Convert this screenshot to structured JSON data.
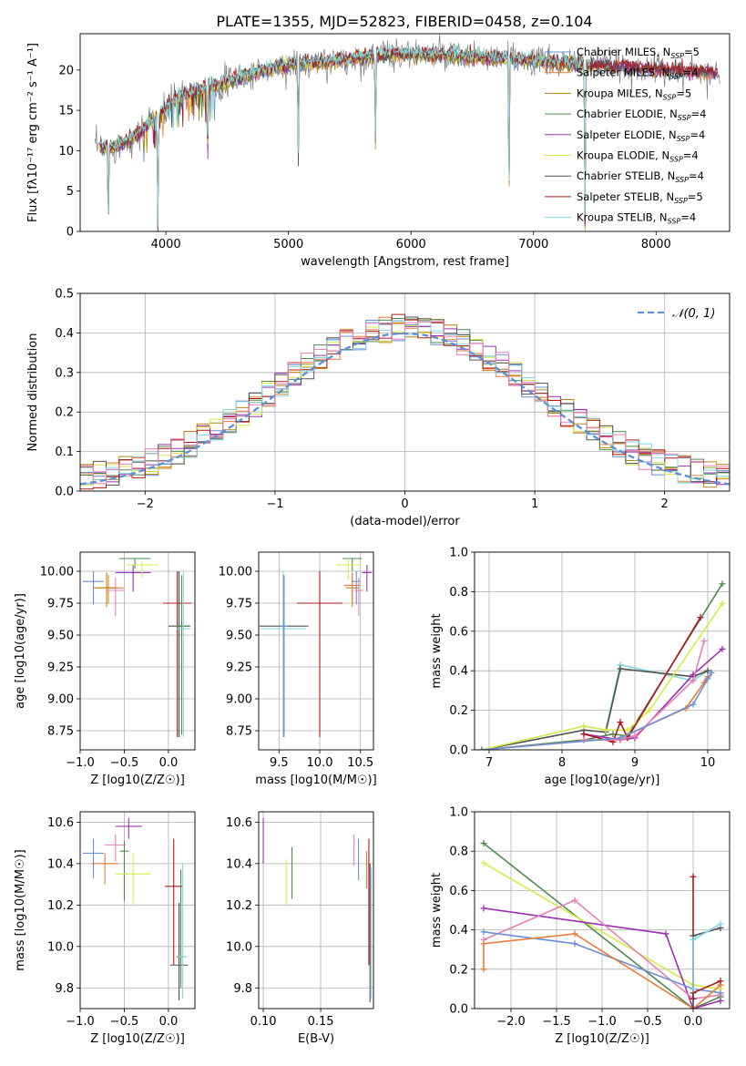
{
  "figure_title": "PLATE=1355, MJD=52823, FIBERID=0458, z=0.104",
  "colors": {
    "Chabrier MILES": "#6a8fd8",
    "Salpeter MILES": "#e97d3b",
    "Kroupa MILES": "#b8860b",
    "Chabrier ELODIE": "#4e8a4e",
    "Salpeter ELODIE": "#9b30b0",
    "Kroupa ELODIE": "#d4ec4a",
    "Chabrier STELIB": "#505050",
    "Salpeter STELIB": "#b01818",
    "Kroupa STELIB": "#80d8e0",
    "data": "#808080",
    "pink": "#e87fb8",
    "normal": "#5b8fd8"
  },
  "chart_data": [
    {
      "id": "spectrum",
      "type": "line",
      "xlabel": "wavelength [Angstrom, rest frame]",
      "ylabel": "Flux [fλ10⁻¹⁷ erg cm⁻² s⁻¹ A⁻¹]",
      "xlim": [
        3300,
        8600
      ],
      "ylim": [
        0,
        24.5
      ],
      "xticks": [
        4000,
        5000,
        6000,
        7000,
        8000
      ],
      "yticks": [
        0,
        5,
        10,
        15,
        20
      ],
      "legend_position": "top-right",
      "series": [
        {
          "name": "Chabrier MILES, N_SSP=5",
          "label": "Chabrier MILES, N",
          "sub": "SSP",
          "suffix": "=5",
          "colorKey": "Chabrier MILES"
        },
        {
          "name": "Salpeter MILES, N_SSP=4",
          "label": "Salpeter MILES, N",
          "sub": "SSP",
          "suffix": "=4",
          "colorKey": "Salpeter MILES"
        },
        {
          "name": "Kroupa MILES, N_SSP=5",
          "label": "Kroupa MILES, N",
          "sub": "SSP",
          "suffix": "=5",
          "colorKey": "Kroupa MILES"
        },
        {
          "name": "Chabrier ELODIE, N_SSP=4",
          "label": "Chabrier ELODIE, N",
          "sub": "SSP",
          "suffix": "=4",
          "colorKey": "Chabrier ELODIE"
        },
        {
          "name": "Salpeter ELODIE, N_SSP=4",
          "label": "Salpeter ELODIE, N",
          "sub": "SSP",
          "suffix": "=4",
          "colorKey": "Salpeter ELODIE"
        },
        {
          "name": "Kroupa ELODIE, N_SSP=4",
          "label": "Kroupa ELODIE, N",
          "sub": "SSP",
          "suffix": "=4",
          "colorKey": "Kroupa ELODIE"
        },
        {
          "name": "Chabrier STELIB, N_SSP=4",
          "label": "Chabrier STELIB, N",
          "sub": "SSP",
          "suffix": "=4",
          "colorKey": "Chabrier STELIB"
        },
        {
          "name": "Salpeter STELIB, N_SSP=5",
          "label": "Salpeter STELIB, N",
          "sub": "SSP",
          "suffix": "=5",
          "colorKey": "Salpeter STELIB"
        },
        {
          "name": "Kroupa STELIB, N_SSP=4",
          "label": "Kroupa STELIB, N",
          "sub": "SSP",
          "suffix": "=4",
          "colorKey": "Kroupa STELIB"
        }
      ],
      "spectrum_shape": {
        "wave": [
          3450,
          3550,
          3650,
          3750,
          3850,
          3950,
          4050,
          4150,
          4300,
          4500,
          4700,
          4900,
          5100,
          5300,
          5500,
          5700,
          5900,
          6100,
          6300,
          6500,
          6700,
          6900,
          7100,
          7300,
          7500,
          7700,
          7900,
          8100,
          8300,
          8500
        ],
        "flux": [
          10.5,
          10.3,
          11.0,
          11.8,
          13.2,
          14.5,
          16.0,
          17.0,
          17.5,
          18.5,
          19.6,
          20.3,
          20.8,
          21.0,
          21.3,
          21.7,
          22.0,
          22.0,
          21.8,
          21.6,
          21.5,
          21.3,
          21.0,
          20.8,
          20.6,
          20.4,
          20.2,
          20.0,
          19.8,
          19.6
        ],
        "dips": [
          {
            "wave": 3530,
            "depth": 10.5
          },
          {
            "wave": 3934,
            "depth": 14.0
          },
          {
            "wave": 4340,
            "depth": 9.0
          },
          {
            "wave": 5080,
            "depth": 12.0
          },
          {
            "wave": 5710,
            "depth": 11.0
          },
          {
            "wave": 6800,
            "depth": 20.0
          },
          {
            "wave": 7420,
            "depth": 20.0
          }
        ]
      }
    },
    {
      "id": "residuals",
      "type": "step",
      "xlabel": "(data-model)/error",
      "ylabel": "Normed distribution",
      "xlim": [
        -2.5,
        2.5
      ],
      "ylim": [
        0,
        0.5
      ],
      "xticks": [
        -2,
        -1,
        0,
        1,
        2
      ],
      "yticks": [
        0.0,
        0.1,
        0.2,
        0.3,
        0.4,
        0.5
      ],
      "grid": true,
      "legend_position": "top-right",
      "legend_label": "𝒩(0, 1)",
      "bins": 50,
      "normal": {
        "mean": 0,
        "sigma": 1
      }
    },
    {
      "id": "age_vs_Z",
      "type": "errorbar",
      "xlabel": "Z [log10(Z/Z☉)]",
      "ylabel": "age  [log10(age/yr)]",
      "xlim": [
        -1.0,
        0.3
      ],
      "ylim": [
        8.6,
        10.15
      ],
      "xticks": [
        -1.0,
        -0.5,
        0.0,
        0.5
      ],
      "yticks": [
        8.75,
        9.0,
        9.25,
        9.5,
        9.75,
        10.0
      ],
      "points": [
        {
          "c": "Chabrier MILES",
          "x": -0.85,
          "y": 9.92,
          "xe": 0.12,
          "ye": [
            0.18,
            0.08
          ]
        },
        {
          "c": "Salpeter MILES",
          "x": -0.68,
          "y": 9.87,
          "xe": 0.17,
          "ye": [
            0.12,
            0.1
          ]
        },
        {
          "c": "Kroupa MILES",
          "x": -0.7,
          "y": 9.87,
          "xe": 0.12,
          "ye": [
            0.15,
            0.12
          ]
        },
        {
          "c": "Chabrier ELODIE",
          "x": -0.38,
          "y": 10.1,
          "xe": 0.18,
          "ye": [
            0.08,
            0.0
          ]
        },
        {
          "c": "Salpeter ELODIE",
          "x": -0.4,
          "y": 9.99,
          "xe": 0.2,
          "ye": [
            0.15,
            0.06
          ]
        },
        {
          "c": "Kroupa ELODIE",
          "x": -0.3,
          "y": 10.05,
          "xe": 0.18,
          "ye": [
            0.1,
            0.03
          ]
        },
        {
          "c": "pink",
          "x": -0.6,
          "y": 9.85,
          "xe": 0.1,
          "ye": [
            0.2,
            0.1
          ]
        },
        {
          "c": "Salpeter STELIB",
          "x": 0.1,
          "y": 9.75,
          "xe": 0.16,
          "ye": [
            1.05,
            0.25
          ]
        },
        {
          "c": "Chabrier STELIB",
          "x": 0.12,
          "y": 9.57,
          "xe": 0.12,
          "ye": [
            0.87,
            0.43
          ]
        },
        {
          "c": "Chabrier ELODIE",
          "x": 0.15,
          "y": 9.57,
          "xe": 0.1,
          "ye": [
            0.85,
            0.4
          ]
        },
        {
          "c": "Kroupa STELIB",
          "x": 0.17,
          "y": 9.55,
          "xe": 0.08,
          "ye": [
            0.85,
            0.45
          ]
        }
      ]
    },
    {
      "id": "age_vs_mass",
      "type": "errorbar",
      "xlabel": "mass [log10(M/M☉)]",
      "ylabel": "",
      "xlim": [
        9.25,
        10.66
      ],
      "ylim": [
        8.6,
        10.15
      ],
      "xticks": [
        9.5,
        10.0,
        10.5
      ],
      "yticks": [
        8.75,
        9.0,
        9.25,
        9.5,
        9.75,
        10.0
      ],
      "points": [
        {
          "c": "Chabrier STELIB",
          "x": 9.56,
          "y": 9.57,
          "xe": 0.3,
          "ye": [
            0.87,
            0.4
          ]
        },
        {
          "c": "Kroupa STELIB",
          "x": 9.55,
          "y": 9.55,
          "xe": 0.28,
          "ye": [
            0.85,
            0.45
          ]
        },
        {
          "c": "Chabrier MILES",
          "x": 9.56,
          "y": 9.57,
          "xe": 0.05,
          "ye": [
            0.87,
            0.4
          ]
        },
        {
          "c": "Salpeter STELIB",
          "x": 10.0,
          "y": 9.75,
          "xe": 0.28,
          "ye": [
            1.05,
            0.25
          ]
        },
        {
          "c": "Chabrier ELODIE",
          "x": 10.4,
          "y": 10.1,
          "xe": 0.12,
          "ye": [
            0.1,
            0.0
          ]
        },
        {
          "c": "Kroupa ELODIE",
          "x": 10.35,
          "y": 10.05,
          "xe": 0.15,
          "ye": [
            0.12,
            0.05
          ]
        },
        {
          "c": "Kroupa MILES",
          "x": 10.4,
          "y": 9.87,
          "xe": 0.08,
          "ye": [
            0.15,
            0.12
          ]
        },
        {
          "c": "Salpeter MILES",
          "x": 10.4,
          "y": 9.89,
          "xe": 0.1,
          "ye": [
            0.14,
            0.1
          ]
        },
        {
          "c": "Salpeter ELODIE",
          "x": 10.58,
          "y": 9.99,
          "xe": 0.06,
          "ye": [
            0.15,
            0.06
          ]
        },
        {
          "c": "Chabrier MILES",
          "x": 10.45,
          "y": 9.92,
          "xe": 0.05,
          "ye": [
            0.18,
            0.08
          ]
        },
        {
          "c": "pink",
          "x": 10.48,
          "y": 9.85,
          "xe": 0.05,
          "ye": [
            0.2,
            0.1
          ]
        }
      ]
    },
    {
      "id": "massweight_vs_age",
      "type": "line",
      "xlabel": "age  [log10(age/yr)]",
      "ylabel": "mass weight",
      "xlim": [
        6.8,
        10.3
      ],
      "ylim": [
        0,
        1.0
      ],
      "xticks": [
        7,
        8,
        9,
        10
      ],
      "yticks": [
        0.0,
        0.2,
        0.4,
        0.6,
        0.8,
        1.0
      ],
      "lines": [
        {
          "c": "Kroupa STELIB",
          "x": [
            6.9,
            8.3,
            8.6,
            8.8,
            9.8,
            10.0
          ],
          "y": [
            0.0,
            0.12,
            0.1,
            0.43,
            0.35,
            0.4
          ]
        },
        {
          "c": "Chabrier STELIB",
          "x": [
            6.9,
            8.3,
            8.6,
            8.8,
            9.8,
            10.0
          ],
          "y": [
            0.0,
            0.1,
            0.09,
            0.41,
            0.37,
            0.4
          ]
        },
        {
          "c": "Chabrier ELODIE",
          "x": [
            6.9,
            8.3,
            8.7,
            8.9,
            10.2
          ],
          "y": [
            0.0,
            0.05,
            0.08,
            0.07,
            0.84
          ]
        },
        {
          "c": "Kroupa ELODIE",
          "x": [
            6.9,
            8.3,
            8.6,
            8.9,
            9.2,
            10.2
          ],
          "y": [
            0.0,
            0.12,
            0.1,
            0.1,
            0.2,
            0.74
          ]
        },
        {
          "c": "Salpeter ELODIE",
          "x": [
            8.3,
            8.8,
            9.0,
            9.8,
            10.2
          ],
          "y": [
            0.08,
            0.05,
            0.06,
            0.38,
            0.51
          ]
        },
        {
          "c": "Salpeter STELIB",
          "x": [
            8.3,
            8.7,
            8.8,
            8.9,
            9.9
          ],
          "y": [
            0.08,
            0.04,
            0.14,
            0.06,
            0.67
          ]
        },
        {
          "c": "pink",
          "x": [
            8.3,
            8.8,
            9.0,
            9.8,
            9.95
          ],
          "y": [
            0.05,
            0.05,
            0.07,
            0.35,
            0.55
          ]
        },
        {
          "c": "Salpeter MILES",
          "x": [
            6.9,
            8.8,
            9.7,
            9.95,
            10.0
          ],
          "y": [
            0.0,
            0.06,
            0.21,
            0.34,
            0.37
          ]
        },
        {
          "c": "Chabrier MILES",
          "x": [
            6.9,
            8.8,
            9.8,
            10.0,
            10.05
          ],
          "y": [
            0.0,
            0.06,
            0.23,
            0.36,
            0.39
          ]
        }
      ]
    },
    {
      "id": "mass_vs_Z",
      "type": "errorbar",
      "xlabel": "Z [log10(Z/Z☉)]",
      "ylabel": "mass [log10(M/M☉)]",
      "xlim": [
        -1.0,
        0.3
      ],
      "ylim": [
        9.7,
        10.65
      ],
      "xticks": [
        -1.0,
        -0.5,
        0.0,
        0.5
      ],
      "yticks": [
        9.8,
        10.0,
        10.2,
        10.4,
        10.6
      ],
      "points": [
        {
          "c": "Chabrier MILES",
          "x": -0.85,
          "y": 10.45,
          "xe": 0.12,
          "ye": [
            0.12,
            0.07
          ]
        },
        {
          "c": "Salpeter MILES",
          "x": -0.72,
          "y": 10.4,
          "xe": 0.15,
          "ye": [
            0.1,
            0.05
          ]
        },
        {
          "c": "pink",
          "x": -0.6,
          "y": 10.49,
          "xe": 0.12,
          "ye": [
            0.08,
            0.05
          ]
        },
        {
          "c": "Chabrier ELODIE",
          "x": -0.5,
          "y": 10.46,
          "xe": 0.05,
          "ye": [
            0.24,
            0.05
          ]
        },
        {
          "c": "Salpeter ELODIE",
          "x": -0.45,
          "y": 10.58,
          "xe": 0.15,
          "ye": [
            0.06,
            0.04
          ]
        },
        {
          "c": "Kroupa ELODIE",
          "x": -0.4,
          "y": 10.35,
          "xe": 0.2,
          "ye": [
            0.15,
            0.1
          ]
        },
        {
          "c": "Salpeter STELIB",
          "x": 0.06,
          "y": 10.29,
          "xe": 0.1,
          "ye": [
            0.38,
            0.23
          ]
        },
        {
          "c": "Chabrier STELIB",
          "x": 0.12,
          "y": 9.91,
          "xe": 0.1,
          "ye": [
            0.17,
            0.3
          ]
        },
        {
          "c": "Chabrier ELODIE",
          "x": 0.14,
          "y": 9.95,
          "xe": 0.05,
          "ye": [
            0.15,
            0.42
          ]
        },
        {
          "c": "Kroupa STELIB",
          "x": 0.16,
          "y": 9.95,
          "xe": 0.05,
          "ye": [
            0.2,
            0.45
          ]
        }
      ]
    },
    {
      "id": "mass_vs_EBV",
      "type": "errorbar",
      "xlabel": "E(B-V)",
      "ylabel": "",
      "xlim": [
        0.096,
        0.196
      ],
      "ylim": [
        9.7,
        10.65
      ],
      "xticks": [
        0.1,
        0.15
      ],
      "yticks": [
        9.8,
        10.0,
        10.2,
        10.4,
        10.6
      ],
      "points": [
        {
          "c": "Salpeter ELODIE",
          "x": 0.1,
          "y": 10.5,
          "xe": 0,
          "ye": [
            0.1,
            0.12
          ]
        },
        {
          "c": "Kroupa ELODIE",
          "x": 0.12,
          "y": 10.3,
          "xe": 0,
          "ye": [
            0.1,
            0.12
          ]
        },
        {
          "c": "Chabrier ELODIE",
          "x": 0.125,
          "y": 10.35,
          "xe": 0,
          "ye": [
            0.12,
            0.13
          ]
        },
        {
          "c": "pink",
          "x": 0.179,
          "y": 10.46,
          "xe": 0,
          "ye": [
            0.07,
            0.08
          ]
        },
        {
          "c": "Chabrier MILES",
          "x": 0.183,
          "y": 10.42,
          "xe": 0,
          "ye": [
            0.1,
            0.1
          ]
        },
        {
          "c": "Salpeter MILES",
          "x": 0.19,
          "y": 10.38,
          "xe": 0,
          "ye": [
            0.1,
            0.08
          ]
        },
        {
          "c": "Salpeter STELIB",
          "x": 0.192,
          "y": 10.29,
          "xe": 0,
          "ye": [
            0.38,
            0.23
          ]
        },
        {
          "c": "Chabrier STELIB",
          "x": 0.193,
          "y": 9.95,
          "xe": 0,
          "ye": [
            0.22,
            0.45
          ]
        },
        {
          "c": "Kroupa STELIB",
          "x": 0.194,
          "y": 9.98,
          "xe": 0,
          "ye": [
            0.23,
            0.4
          ]
        }
      ]
    },
    {
      "id": "massweight_vs_Z",
      "type": "line",
      "xlabel": "Z [log10(Z/Z☉)]",
      "ylabel": "mass weight",
      "xlim": [
        -2.4,
        0.4
      ],
      "ylim": [
        0,
        1.0
      ],
      "xticks": [
        -2.0,
        -1.5,
        -1.0,
        -0.5,
        0.0
      ],
      "yticks": [
        0.0,
        0.2,
        0.4,
        0.6,
        0.8,
        1.0
      ],
      "lines": [
        {
          "c": "Chabrier ELODIE",
          "x": [
            -2.3,
            0.0,
            0.3
          ],
          "y": [
            0.84,
            0.0,
            0.06
          ]
        },
        {
          "c": "Kroupa ELODIE",
          "x": [
            -2.3,
            0.0,
            0.3
          ],
          "y": [
            0.74,
            0.12,
            0.1
          ]
        },
        {
          "c": "Salpeter ELODIE",
          "x": [
            -2.3,
            -0.3,
            0.0,
            0.3
          ],
          "y": [
            0.51,
            0.38,
            0.0,
            0.04
          ]
        },
        {
          "c": "pink",
          "x": [
            -2.3,
            -1.3,
            0.0,
            0.3
          ],
          "y": [
            0.35,
            0.55,
            0.05,
            0.07
          ]
        },
        {
          "c": "Chabrier MILES",
          "x": [
            -2.3,
            -1.3,
            0.0,
            0.3
          ],
          "y": [
            0.39,
            0.33,
            0.1,
            0.08
          ]
        },
        {
          "c": "Salpeter MILES",
          "x": [
            -2.3,
            -2.3,
            -1.3,
            0.0,
            0.3
          ],
          "y": [
            0.2,
            0.33,
            0.38,
            0.0,
            0.12
          ]
        },
        {
          "c": "Salpeter STELIB",
          "x": [
            0.0,
            0.0,
            0.0,
            0.3
          ],
          "y": [
            0.67,
            0.05,
            0.08,
            0.14
          ]
        },
        {
          "c": "Chabrier STELIB",
          "x": [
            0.0,
            0.0,
            0.3
          ],
          "y": [
            0.0,
            0.37,
            0.41
          ]
        },
        {
          "c": "Kroupa STELIB",
          "x": [
            0.0,
            0.0,
            0.3
          ],
          "y": [
            0.1,
            0.35,
            0.43
          ]
        }
      ]
    }
  ]
}
